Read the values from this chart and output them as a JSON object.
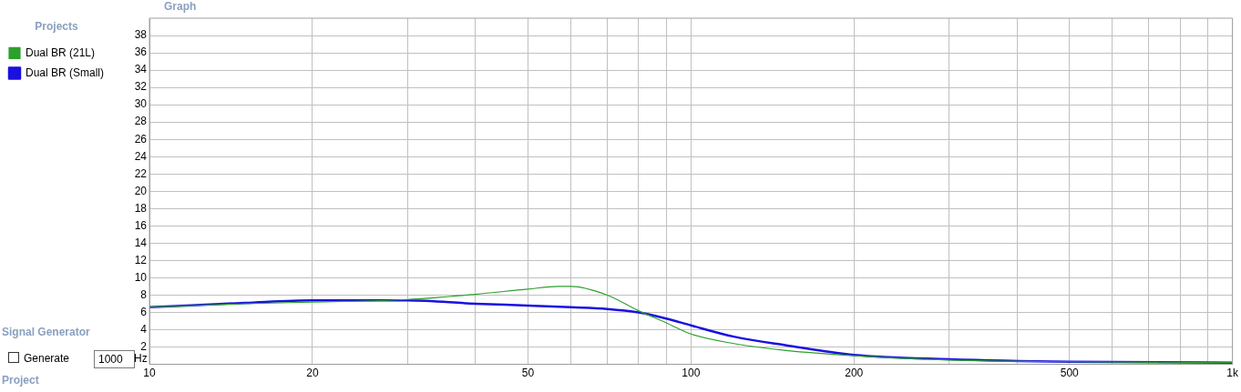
{
  "chart_data": {
    "type": "line",
    "legend_title": "Projects",
    "legend": "left",
    "grid": true,
    "log": "x",
    "marker": "none",
    "line_style": "solid",
    "annotations": [
      "Graph",
      "Signal Generator",
      "Generate",
      "1000",
      "Hz",
      "Project"
    ],
    "xlim": [
      10,
      1000
    ],
    "ylim": [
      0,
      40
    ],
    "xticks": [
      10,
      20,
      {
        "value": 30,
        "label": null
      },
      {
        "value": 40,
        "label": null
      },
      50,
      {
        "value": 60,
        "label": null
      },
      {
        "value": 70,
        "label": null
      },
      {
        "value": 80,
        "label": null
      },
      {
        "value": 90,
        "label": null
      },
      100,
      200,
      {
        "value": 300,
        "label": null
      },
      {
        "value": 400,
        "label": null
      },
      500,
      {
        "value": 600,
        "label": null
      },
      {
        "value": 700,
        "label": null
      },
      {
        "value": 800,
        "label": null
      },
      {
        "value": 900,
        "label": null
      },
      {
        "value": 1000,
        "label": "1k"
      }
    ],
    "yticks": [
      2,
      4,
      6,
      8,
      10,
      12,
      14,
      16,
      18,
      20,
      22,
      24,
      26,
      28,
      30,
      32,
      34,
      36,
      38
    ],
    "series": [
      {
        "name": "Dual BR (Small)",
        "color": "#1a10e0",
        "x": [
          10,
          15,
          20,
          30,
          40,
          50,
          60,
          70,
          80,
          90,
          100,
          120,
          150,
          200,
          300,
          500,
          1000
        ],
        "values": [
          6.6,
          7.1,
          7.4,
          7.4,
          7,
          6.8,
          6.6,
          6.4,
          6,
          5.3,
          4.5,
          3.2,
          2.2,
          1.1,
          0.6,
          0.3,
          0.2
        ]
      },
      {
        "name": "Dual BR (21L)",
        "color": "#2ca02c",
        "x": [
          10,
          15,
          20,
          30,
          40,
          50,
          57,
          60,
          70,
          80,
          90,
          100,
          120,
          150,
          200,
          300,
          500,
          1000
        ],
        "values": [
          6.6,
          7,
          7.2,
          7.5,
          8.1,
          8.7,
          9,
          9,
          8,
          6.2,
          4.8,
          3.5,
          2.4,
          1.6,
          1,
          0.5,
          0.3,
          0.2
        ]
      }
    ]
  }
}
